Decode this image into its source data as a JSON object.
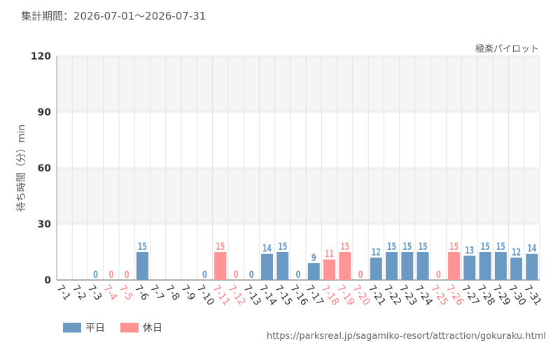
{
  "header": {
    "period_label": "集計期間：2026-07-01～2026-07-31",
    "attraction_name": "極楽パイロット"
  },
  "footer": {
    "source_url": "https://parksreal.jp/sagamiko-resort/attraction/gokuraku.html"
  },
  "colors": {
    "weekday": "#6a9ac4",
    "holiday": "#ff9494",
    "tick_holiday": "#ff8080",
    "tick_weekday": "#333333",
    "band": "#f5f5f5",
    "grid": "#e3e3e3"
  },
  "chart_data": {
    "type": "bar",
    "ylabel": "待ち時間（分）min",
    "ylim": [
      0,
      120
    ],
    "yticks": [
      0,
      30,
      60,
      90,
      120
    ],
    "grid": true,
    "legend_position": "bottom-left",
    "legend": [
      {
        "name": "平日",
        "key": "weekday"
      },
      {
        "name": "休日",
        "key": "holiday"
      }
    ],
    "categories": [
      "7-1",
      "7-2",
      "7-3",
      "7-4",
      "7-5",
      "7-6",
      "7-7",
      "7-8",
      "7-9",
      "7-10",
      "7-11",
      "7-12",
      "7-13",
      "7-14",
      "7-15",
      "7-16",
      "7-17",
      "7-18",
      "7-19",
      "7-20",
      "7-21",
      "7-22",
      "7-23",
      "7-24",
      "7-25",
      "7-26",
      "7-27",
      "7-28",
      "7-29",
      "7-30",
      "7-31"
    ],
    "values": [
      null,
      null,
      0,
      0,
      0,
      15,
      null,
      null,
      null,
      0,
      15,
      0,
      0,
      14,
      15,
      0,
      9,
      11,
      15,
      0,
      12,
      15,
      15,
      15,
      0,
      15,
      13,
      15,
      15,
      12,
      14
    ],
    "day_type": [
      "weekday",
      "weekday",
      "weekday",
      "holiday",
      "holiday",
      "weekday",
      "weekday",
      "weekday",
      "weekday",
      "weekday",
      "holiday",
      "holiday",
      "weekday",
      "weekday",
      "weekday",
      "weekday",
      "weekday",
      "holiday",
      "holiday",
      "holiday",
      "weekday",
      "weekday",
      "weekday",
      "weekday",
      "holiday",
      "holiday",
      "weekday",
      "weekday",
      "weekday",
      "weekday",
      "weekday"
    ]
  }
}
